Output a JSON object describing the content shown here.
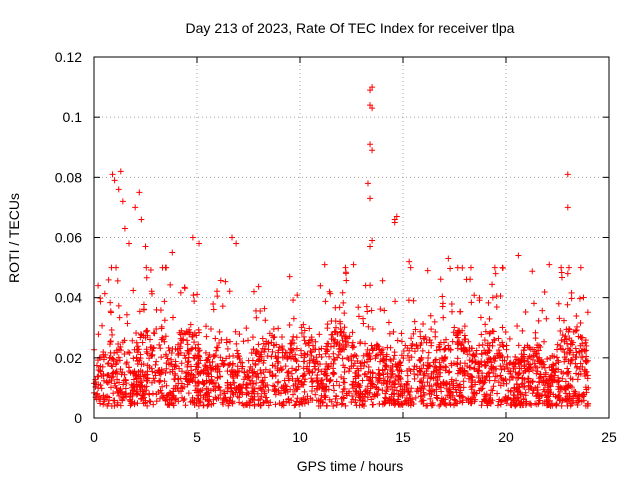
{
  "chart_data": {
    "type": "scatter",
    "title": "Day 213 of 2023, Rate Of TEC Index for receiver tlpa",
    "xlabel": "GPS time / hours",
    "ylabel": "ROTI / TECUs",
    "xlim": [
      0,
      25
    ],
    "ylim": [
      0,
      0.12
    ],
    "xticks": [
      0,
      5,
      10,
      15,
      20,
      25
    ],
    "xtick_labels": [
      "0",
      "5",
      "10",
      "15",
      "20",
      "25"
    ],
    "yticks": [
      0,
      0.02,
      0.04,
      0.06,
      0.08,
      0.1,
      0.12
    ],
    "ytick_labels": [
      "0",
      "0.02",
      "0.04",
      "0.06",
      "0.08",
      "0.1",
      "0.12"
    ],
    "grid": true,
    "marker": "plus",
    "color": "#ff0000",
    "series": [
      {
        "name": "ROTI",
        "x_range": [
          0,
          24
        ],
        "baseline_range": [
          0.004,
          0.025
        ],
        "outliers": [
          {
            "x": 0.2,
            "y": 0.044
          },
          {
            "x": 0.9,
            "y": 0.081
          },
          {
            "x": 1.0,
            "y": 0.079
          },
          {
            "x": 1.3,
            "y": 0.082
          },
          {
            "x": 1.2,
            "y": 0.076
          },
          {
            "x": 1.4,
            "y": 0.072
          },
          {
            "x": 1.5,
            "y": 0.063
          },
          {
            "x": 1.7,
            "y": 0.058
          },
          {
            "x": 2.0,
            "y": 0.07
          },
          {
            "x": 2.2,
            "y": 0.075
          },
          {
            "x": 2.3,
            "y": 0.066
          },
          {
            "x": 2.5,
            "y": 0.057
          },
          {
            "x": 4.8,
            "y": 0.06
          },
          {
            "x": 5.1,
            "y": 0.058
          },
          {
            "x": 6.7,
            "y": 0.06
          },
          {
            "x": 6.9,
            "y": 0.058
          },
          {
            "x": 13.4,
            "y": 0.109
          },
          {
            "x": 13.5,
            "y": 0.11
          },
          {
            "x": 13.4,
            "y": 0.104
          },
          {
            "x": 13.5,
            "y": 0.103
          },
          {
            "x": 13.4,
            "y": 0.091
          },
          {
            "x": 13.5,
            "y": 0.089
          },
          {
            "x": 13.3,
            "y": 0.078
          },
          {
            "x": 13.4,
            "y": 0.073
          },
          {
            "x": 13.5,
            "y": 0.059
          },
          {
            "x": 13.4,
            "y": 0.057
          },
          {
            "x": 14.6,
            "y": 0.066
          },
          {
            "x": 14.7,
            "y": 0.067
          },
          {
            "x": 14.6,
            "y": 0.065
          },
          {
            "x": 23.0,
            "y": 0.081
          },
          {
            "x": 23.0,
            "y": 0.07
          },
          {
            "x": 11.2,
            "y": 0.051
          },
          {
            "x": 12.6,
            "y": 0.051
          },
          {
            "x": 15.3,
            "y": 0.052
          },
          {
            "x": 17.2,
            "y": 0.053
          },
          {
            "x": 20.6,
            "y": 0.054
          },
          {
            "x": 22.1,
            "y": 0.051
          },
          {
            "x": 23.0,
            "y": 0.048
          },
          {
            "x": 3.8,
            "y": 0.055
          },
          {
            "x": 9.5,
            "y": 0.047
          },
          {
            "x": 16.2,
            "y": 0.049
          },
          {
            "x": 18.3,
            "y": 0.05
          },
          {
            "x": 19.5,
            "y": 0.048
          }
        ]
      }
    ]
  }
}
